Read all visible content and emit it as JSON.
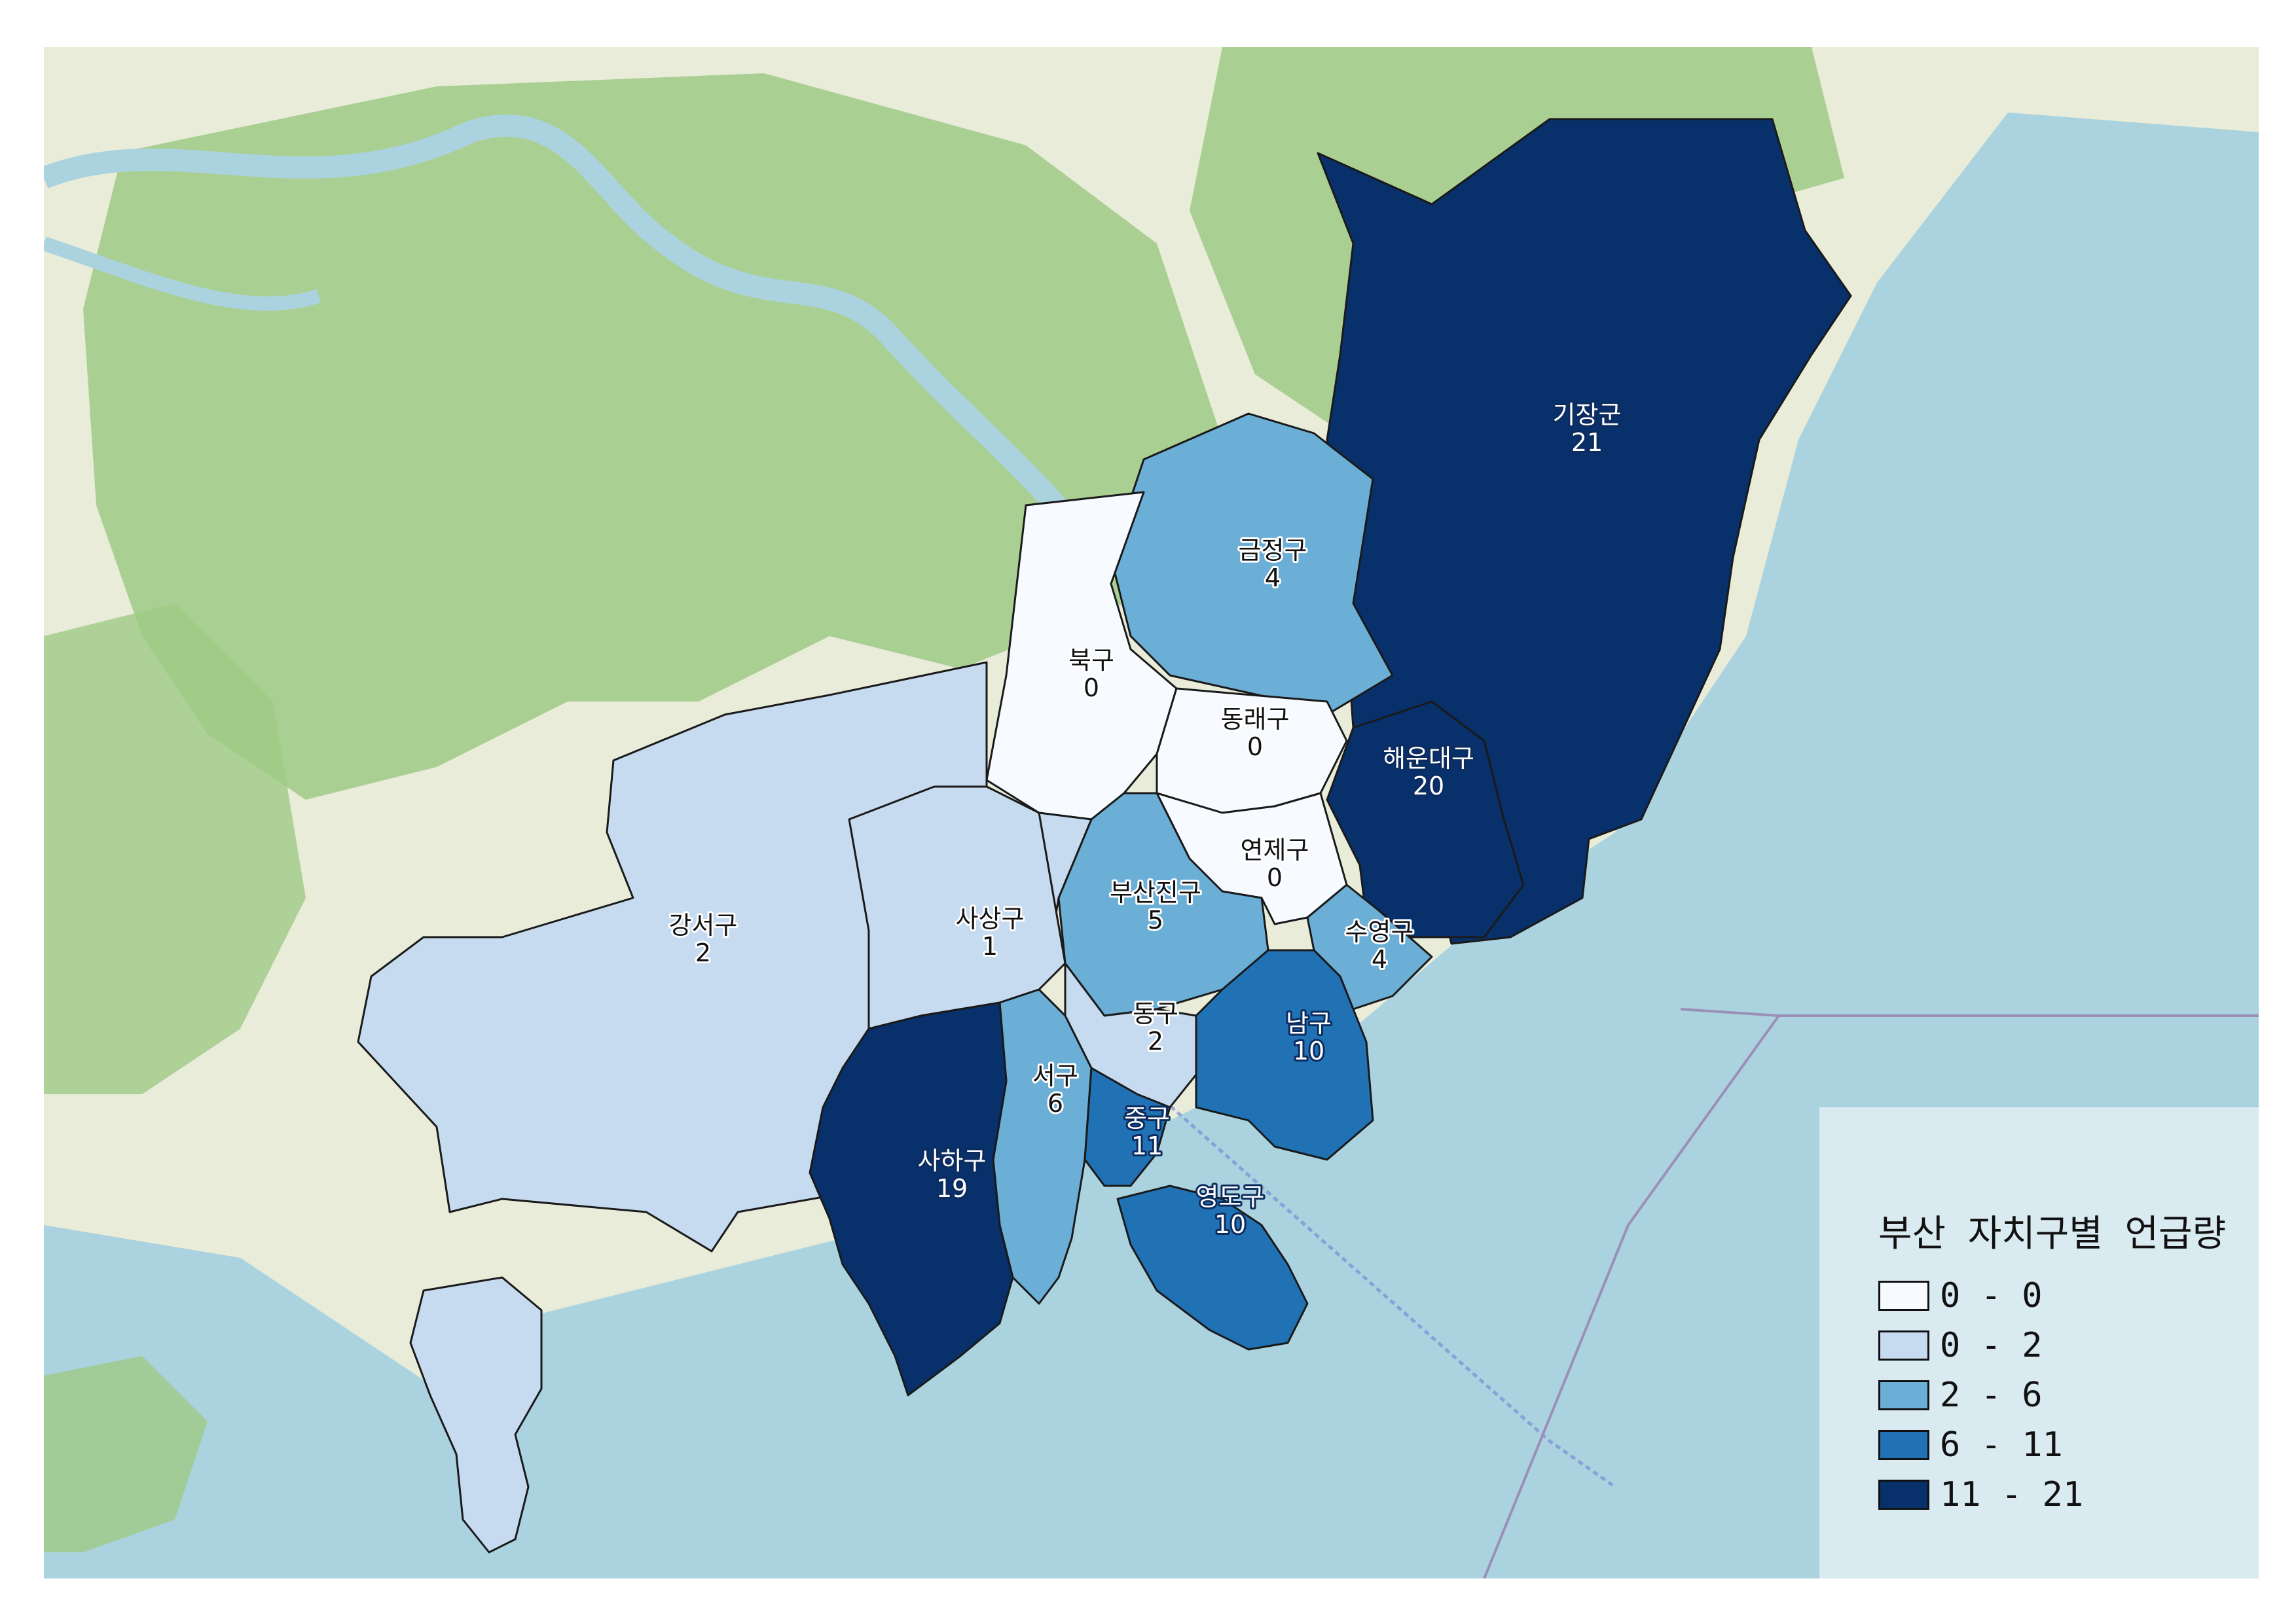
{
  "map": {
    "legend": {
      "title": "부산 자치구별 언급량",
      "classes": [
        {
          "label": "0 - 0",
          "color": "#f7fbff"
        },
        {
          "label": "0 - 2",
          "color": "#c6dbef"
        },
        {
          "label": "2 - 6",
          "color": "#6baed6"
        },
        {
          "label": "6 - 11",
          "color": "#2171b5"
        },
        {
          "label": "11 - 21",
          "color": "#08306b"
        }
      ]
    },
    "districts": [
      {
        "name": "기장군",
        "value": "21"
      },
      {
        "name": "금정구",
        "value": "4"
      },
      {
        "name": "북구",
        "value": "0"
      },
      {
        "name": "동래구",
        "value": "0"
      },
      {
        "name": "해운대구",
        "value": "20"
      },
      {
        "name": "연제구",
        "value": "0"
      },
      {
        "name": "부산진구",
        "value": "5"
      },
      {
        "name": "강서구",
        "value": "2"
      },
      {
        "name": "사상구",
        "value": "1"
      },
      {
        "name": "수영구",
        "value": "4"
      },
      {
        "name": "동구",
        "value": "2"
      },
      {
        "name": "남구",
        "value": "10"
      },
      {
        "name": "서구",
        "value": "6"
      },
      {
        "name": "중구",
        "value": "11"
      },
      {
        "name": "사하구",
        "value": "19"
      },
      {
        "name": "영도구",
        "value": "10"
      }
    ]
  },
  "colors": {
    "sea": "#aad3df",
    "land": "#e9ebdc",
    "forest": "#a8cf8c"
  }
}
